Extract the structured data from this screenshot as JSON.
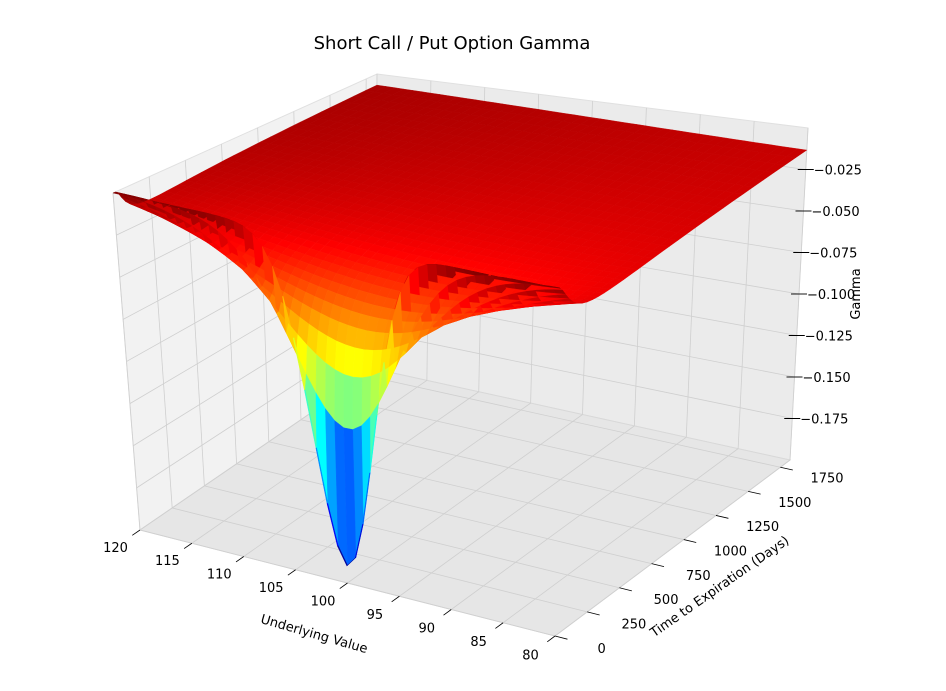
{
  "chart_data": {
    "type": "surface3d",
    "title": "Short Call / Put Option Gamma",
    "xlabel": "Underlying Value",
    "ylabel": "Time to Expiration (Days)",
    "zlabel": "Gamma",
    "colormap": "jet",
    "x_ticks": [
      "120",
      "115",
      "110",
      "105",
      "100",
      "95",
      "90",
      "85",
      "80"
    ],
    "y_ticks": [
      "0",
      "250",
      "500",
      "750",
      "1000",
      "1250",
      "1500",
      "1750"
    ],
    "z_ticks": [
      "0.025",
      "0.050",
      "0.075",
      "0.100",
      "0.125",
      "0.150",
      "0.175"
    ],
    "z_tick_values": [
      -0.025,
      -0.05,
      -0.075,
      -0.1,
      -0.125,
      -0.15,
      -0.175
    ],
    "x_range": [
      80,
      120
    ],
    "y_range": [
      0,
      1825
    ],
    "z_range": [
      -0.2,
      0.0
    ],
    "strike": 100,
    "min_gamma": -0.19,
    "grid": true,
    "surface_points": [
      {
        "underlying": 100,
        "days": 0,
        "gamma": -0.19
      },
      {
        "underlying": 100,
        "days": 250,
        "gamma": -0.115
      },
      {
        "underlying": 120,
        "days": 0,
        "gamma": -0.001
      },
      {
        "underlying": 80,
        "days": 0,
        "gamma": 0.0
      },
      {
        "underlying": 80,
        "days": 1825,
        "gamma": -0.005
      },
      {
        "underlying": 120,
        "days": 1825,
        "gamma": -0.005
      },
      {
        "underlying": 100,
        "days": 1825,
        "gamma": -0.007
      }
    ]
  }
}
